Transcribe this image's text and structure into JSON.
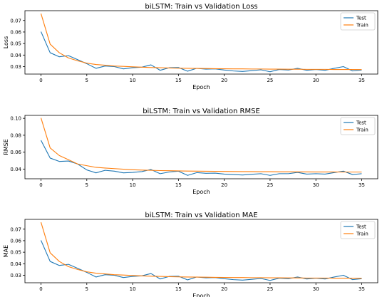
{
  "colors": {
    "test": "#1f77b4",
    "train": "#ff7f0e"
  },
  "chart_data": [
    {
      "type": "line",
      "title": "biLSTM: Train vs Validation Loss",
      "xlabel": "Epoch",
      "ylabel": "Loss",
      "x": [
        0,
        1,
        2,
        3,
        4,
        5,
        6,
        7,
        8,
        9,
        10,
        11,
        12,
        13,
        14,
        15,
        16,
        17,
        18,
        19,
        20,
        21,
        22,
        23,
        24,
        25,
        26,
        27,
        28,
        29,
        30,
        31,
        32,
        33,
        34,
        35
      ],
      "xticks": [
        0,
        5,
        10,
        15,
        20,
        25,
        30,
        35
      ],
      "yticks": [
        0.03,
        0.04,
        0.05,
        0.06,
        0.07
      ],
      "ytick_labels": [
        "0.03",
        "0.04",
        "0.05",
        "0.06",
        "0.07"
      ],
      "xlim": [
        -1.75,
        36.75
      ],
      "ylim": [
        0.0235,
        0.0785
      ],
      "legend": "top-right",
      "series": [
        {
          "name": "Test",
          "color_key": "test",
          "values": [
            0.0603,
            0.042,
            0.0385,
            0.0395,
            0.036,
            0.0325,
            0.0285,
            0.0305,
            0.03,
            0.028,
            0.029,
            0.0295,
            0.0315,
            0.0268,
            0.029,
            0.0292,
            0.026,
            0.0285,
            0.0278,
            0.028,
            0.027,
            0.0262,
            0.0258,
            0.0265,
            0.0272,
            0.0255,
            0.0275,
            0.027,
            0.0285,
            0.0268,
            0.0275,
            0.0268,
            0.0285,
            0.03,
            0.0262,
            0.027
          ]
        },
        {
          "name": "Train",
          "color_key": "train",
          "values": [
            0.076,
            0.0495,
            0.042,
            0.0375,
            0.035,
            0.033,
            0.0318,
            0.0312,
            0.0305,
            0.0302,
            0.0298,
            0.0295,
            0.0292,
            0.029,
            0.0288,
            0.0286,
            0.0285,
            0.0284,
            0.0283,
            0.0282,
            0.0281,
            0.028,
            0.028,
            0.0279,
            0.0279,
            0.0278,
            0.0278,
            0.0277,
            0.0277,
            0.0276,
            0.0276,
            0.0276,
            0.0275,
            0.0275,
            0.0275,
            0.0274
          ]
        }
      ]
    },
    {
      "type": "line",
      "title": "biLSTM: Train vs Validation RMSE",
      "xlabel": "Epoch",
      "ylabel": "RMSE",
      "x": [
        0,
        1,
        2,
        3,
        4,
        5,
        6,
        7,
        8,
        9,
        10,
        11,
        12,
        13,
        14,
        15,
        16,
        17,
        18,
        19,
        20,
        21,
        22,
        23,
        24,
        25,
        26,
        27,
        28,
        29,
        30,
        31,
        32,
        33,
        34,
        35
      ],
      "xticks": [
        0,
        5,
        10,
        15,
        20,
        25,
        30,
        35
      ],
      "yticks": [
        0.04,
        0.06,
        0.08,
        0.1
      ],
      "ytick_labels": [
        "0.04",
        "0.06",
        "0.08",
        "0.10"
      ],
      "xlim": [
        -1.75,
        36.75
      ],
      "ylim": [
        0.0285,
        0.1035
      ],
      "legend": "top-right",
      "series": [
        {
          "name": "Test",
          "color_key": "test",
          "values": [
            0.074,
            0.053,
            0.049,
            0.0495,
            0.046,
            0.039,
            0.0355,
            0.0385,
            0.0375,
            0.0355,
            0.036,
            0.037,
            0.0395,
            0.0345,
            0.0365,
            0.0375,
            0.0325,
            0.0358,
            0.035,
            0.0352,
            0.034,
            0.0335,
            0.033,
            0.0338,
            0.0345,
            0.0325,
            0.0345,
            0.0345,
            0.036,
            0.034,
            0.0345,
            0.034,
            0.0358,
            0.0375,
            0.0335,
            0.0345
          ]
        },
        {
          "name": "Train",
          "color_key": "train",
          "values": [
            0.1005,
            0.065,
            0.056,
            0.051,
            0.046,
            0.044,
            0.042,
            0.0412,
            0.0405,
            0.0398,
            0.0392,
            0.0388,
            0.0385,
            0.0382,
            0.038,
            0.0378,
            0.0376,
            0.0375,
            0.0374,
            0.0373,
            0.0372,
            0.0371,
            0.037,
            0.037,
            0.0369,
            0.0369,
            0.0368,
            0.0368,
            0.0367,
            0.0367,
            0.0366,
            0.0366,
            0.0366,
            0.0365,
            0.0365,
            0.0365
          ]
        }
      ]
    },
    {
      "type": "line",
      "title": "biLSTM: Train vs Validation MAE",
      "xlabel": "Epoch",
      "ylabel": "MAE",
      "x": [
        0,
        1,
        2,
        3,
        4,
        5,
        6,
        7,
        8,
        9,
        10,
        11,
        12,
        13,
        14,
        15,
        16,
        17,
        18,
        19,
        20,
        21,
        22,
        23,
        24,
        25,
        26,
        27,
        28,
        29,
        30,
        31,
        32,
        33,
        34,
        35
      ],
      "xticks": [
        0,
        5,
        10,
        15,
        20,
        25,
        30,
        35
      ],
      "yticks": [
        0.03,
        0.04,
        0.05,
        0.06,
        0.07
      ],
      "ytick_labels": [
        "0.03",
        "0.04",
        "0.05",
        "0.06",
        "0.07"
      ],
      "xlim": [
        -1.75,
        36.75
      ],
      "ylim": [
        0.0235,
        0.0785
      ],
      "legend": "top-right",
      "series": [
        {
          "name": "Test",
          "color_key": "test",
          "values": [
            0.0603,
            0.042,
            0.0385,
            0.0395,
            0.036,
            0.0325,
            0.0285,
            0.0305,
            0.03,
            0.028,
            0.029,
            0.0295,
            0.0315,
            0.0268,
            0.029,
            0.0292,
            0.026,
            0.0285,
            0.0278,
            0.028,
            0.027,
            0.0262,
            0.0258,
            0.0265,
            0.0272,
            0.0255,
            0.0275,
            0.027,
            0.0285,
            0.0268,
            0.0275,
            0.0268,
            0.0285,
            0.03,
            0.0262,
            0.027
          ]
        },
        {
          "name": "Train",
          "color_key": "train",
          "values": [
            0.076,
            0.0495,
            0.042,
            0.0375,
            0.035,
            0.033,
            0.0318,
            0.0312,
            0.0305,
            0.0302,
            0.0298,
            0.0295,
            0.0292,
            0.029,
            0.0288,
            0.0286,
            0.0285,
            0.0284,
            0.0283,
            0.0282,
            0.0281,
            0.028,
            0.028,
            0.0279,
            0.0279,
            0.0278,
            0.0278,
            0.0277,
            0.0277,
            0.0276,
            0.0276,
            0.0276,
            0.0275,
            0.0275,
            0.0275,
            0.0274
          ]
        }
      ]
    }
  ]
}
